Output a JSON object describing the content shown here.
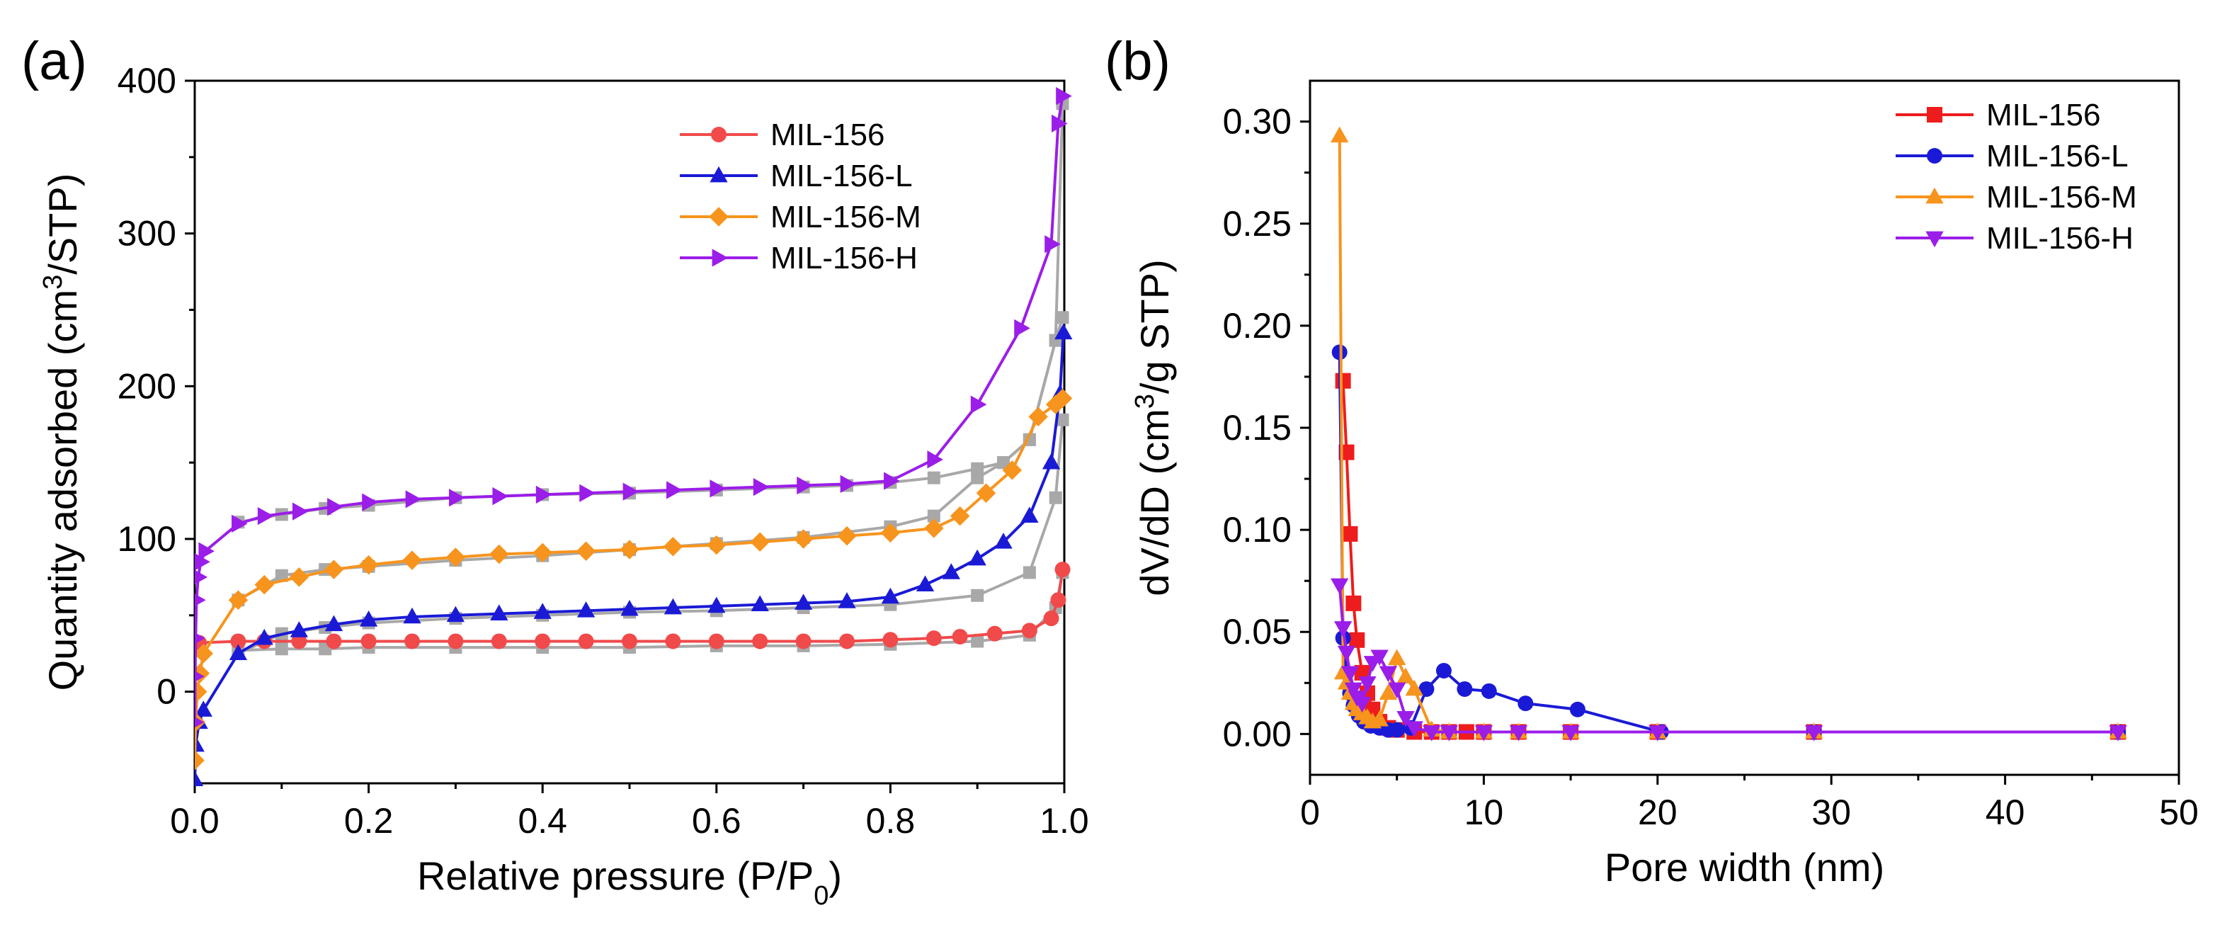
{
  "chart_data": [
    {
      "panel_label": "(a)",
      "type": "line",
      "xlabel": "Relative pressure (P/P",
      "xlabel_sub": "0",
      "xlabel_end": ")",
      "ylabel": "Quantity adsorbed (cm",
      "ylabel_sup": "3",
      "ylabel_end": "/STP)",
      "xlim": [
        0,
        1
      ],
      "ylim": [
        -60,
        400
      ],
      "xticks": [
        0,
        0.2,
        0.4,
        0.6,
        0.8,
        1.0
      ],
      "xtick_labels": [
        "0.0",
        "0.2",
        "0.4",
        "0.6",
        "0.8",
        "1.0"
      ],
      "yticks": [
        0,
        100,
        200,
        300,
        400
      ],
      "ytick_labels": [
        "0",
        "100",
        "200",
        "300",
        "400"
      ],
      "legend_position": "top-right",
      "grid": false,
      "series": [
        {
          "name": "MIL-156",
          "color": "#f04a4a",
          "marker": "circle",
          "x": [
            0.005,
            0.05,
            0.08,
            0.12,
            0.16,
            0.2,
            0.25,
            0.3,
            0.35,
            0.4,
            0.45,
            0.5,
            0.55,
            0.6,
            0.65,
            0.7,
            0.75,
            0.8,
            0.85,
            0.88,
            0.92,
            0.96,
            0.985,
            0.993,
            0.998
          ],
          "y": [
            32,
            33,
            33,
            33,
            33,
            33,
            33,
            33,
            33,
            33,
            33,
            33,
            33,
            33,
            33,
            33,
            33,
            34,
            35,
            36,
            38,
            40,
            48,
            60,
            80
          ],
          "desorption_x": [
            0.998,
            0.99,
            0.96,
            0.9,
            0.8,
            0.7,
            0.6,
            0.5,
            0.4,
            0.3,
            0.2,
            0.15,
            0.1,
            0.05
          ],
          "desorption_y": [
            78,
            55,
            37,
            33,
            31,
            30,
            30,
            29,
            29,
            29,
            29,
            28,
            28,
            27
          ]
        },
        {
          "name": "MIL-156-L",
          "color": "#1a1ad6",
          "marker": "triangle-up",
          "x": [
            0.0001,
            0.001,
            0.005,
            0.01,
            0.05,
            0.08,
            0.12,
            0.16,
            0.2,
            0.25,
            0.3,
            0.35,
            0.4,
            0.45,
            0.5,
            0.55,
            0.6,
            0.65,
            0.7,
            0.75,
            0.8,
            0.84,
            0.87,
            0.9,
            0.93,
            0.96,
            0.985,
            0.995,
            0.999
          ],
          "y": [
            -58,
            -35,
            -20,
            -12,
            25,
            35,
            40,
            44,
            47,
            49,
            50,
            51,
            52,
            53,
            54,
            55,
            56,
            57,
            58,
            59,
            62,
            70,
            78,
            87,
            98,
            115,
            150,
            195,
            235
          ],
          "desorption_x": [
            0.998,
            0.99,
            0.96,
            0.9,
            0.8,
            0.7,
            0.6,
            0.5,
            0.4,
            0.3,
            0.2,
            0.15,
            0.1,
            0.05
          ],
          "desorption_y": [
            178,
            127,
            78,
            63,
            57,
            55,
            53,
            52,
            50,
            48,
            45,
            42,
            38,
            25
          ]
        },
        {
          "name": "MIL-156-M",
          "color": "#f7941d",
          "marker": "diamond",
          "x": [
            0.0001,
            0.001,
            0.003,
            0.006,
            0.01,
            0.05,
            0.08,
            0.12,
            0.16,
            0.2,
            0.25,
            0.3,
            0.35,
            0.4,
            0.45,
            0.5,
            0.55,
            0.6,
            0.65,
            0.7,
            0.75,
            0.8,
            0.85,
            0.88,
            0.91,
            0.94,
            0.97,
            0.99,
            0.998
          ],
          "y": [
            -45,
            -20,
            0,
            12,
            25,
            60,
            70,
            75,
            80,
            83,
            86,
            88,
            90,
            91,
            92,
            93,
            95,
            96,
            98,
            100,
            102,
            104,
            107,
            115,
            130,
            145,
            180,
            188,
            192
          ],
          "desorption_x": [
            0.998,
            0.99,
            0.96,
            0.93,
            0.9,
            0.85,
            0.8,
            0.7,
            0.6,
            0.5,
            0.4,
            0.3,
            0.2,
            0.15,
            0.1,
            0.05
          ],
          "desorption_y": [
            245,
            230,
            165,
            150,
            140,
            115,
            108,
            101,
            97,
            93,
            89,
            86,
            82,
            80,
            76,
            60
          ]
        },
        {
          "name": "MIL-156-H",
          "color": "#9b1de8",
          "marker": "triangle-right",
          "x": [
            0.0001,
            0.0005,
            0.001,
            0.002,
            0.004,
            0.007,
            0.012,
            0.05,
            0.08,
            0.12,
            0.16,
            0.2,
            0.25,
            0.3,
            0.35,
            0.4,
            0.45,
            0.5,
            0.55,
            0.6,
            0.65,
            0.7,
            0.75,
            0.8,
            0.85,
            0.9,
            0.95,
            0.985,
            0.993,
            0.998
          ],
          "y": [
            -20,
            10,
            35,
            60,
            75,
            85,
            92,
            110,
            115,
            118,
            121,
            124,
            126,
            127,
            128,
            129,
            130,
            131,
            132,
            133,
            134,
            135,
            136,
            138,
            152,
            188,
            238,
            293,
            372,
            390
          ],
          "desorption_x": [
            0.998,
            0.99,
            0.96,
            0.93,
            0.9,
            0.85,
            0.8,
            0.75,
            0.7,
            0.6,
            0.5,
            0.4,
            0.3,
            0.2,
            0.15,
            0.1,
            0.05
          ],
          "desorption_y": [
            385,
            230,
            165,
            150,
            146,
            140,
            137,
            135,
            134,
            132,
            130,
            129,
            127,
            122,
            120,
            116,
            111
          ]
        }
      ],
      "desorption_color": "#a8a8a8",
      "desorption_marker": "square"
    },
    {
      "panel_label": "(b)",
      "type": "line",
      "xlabel": "Pore width (nm)",
      "ylabel": "dV/dD (cm",
      "ylabel_sup": "3",
      "ylabel_end": "/g STP)",
      "xlim": [
        0,
        50
      ],
      "ylim": [
        -0.02,
        0.32
      ],
      "xticks": [
        0,
        10,
        20,
        30,
        40,
        50
      ],
      "xtick_labels": [
        "0",
        "10",
        "20",
        "30",
        "40",
        "50"
      ],
      "yticks": [
        0,
        0.05,
        0.1,
        0.15,
        0.2,
        0.25,
        0.3
      ],
      "ytick_labels": [
        "0.00",
        "0.05",
        "0.10",
        "0.15",
        "0.20",
        "0.25",
        "0.30"
      ],
      "legend_position": "top-right",
      "grid": false,
      "series": [
        {
          "name": "MIL-156",
          "color": "#ee1c1c",
          "marker": "square",
          "x": [
            1.9,
            2.1,
            2.3,
            2.5,
            2.7,
            3.0,
            3.3,
            3.6,
            4.0,
            4.5,
            5.0,
            6.0,
            7.0,
            8.0,
            9.0,
            10.0,
            12.0,
            15.0,
            20.0,
            29.0,
            46.5
          ],
          "y": [
            0.173,
            0.138,
            0.098,
            0.064,
            0.046,
            0.03,
            0.02,
            0.012,
            0.006,
            0.003,
            0.002,
            0.001,
            0.001,
            0.001,
            0.001,
            0.001,
            0.001,
            0.001,
            0.001,
            0.001,
            0.001
          ]
        },
        {
          "name": "MIL-156-L",
          "color": "#1a1ad6",
          "marker": "circle",
          "x": [
            1.7,
            1.9,
            2.1,
            2.3,
            2.5,
            2.8,
            3.1,
            3.5,
            4.0,
            4.5,
            5.0,
            5.8,
            6.7,
            7.7,
            8.9,
            10.3,
            12.4,
            15.4,
            20.2,
            29.0,
            46.5
          ],
          "y": [
            0.187,
            0.047,
            0.03,
            0.02,
            0.014,
            0.009,
            0.006,
            0.004,
            0.003,
            0.002,
            0.002,
            0.003,
            0.022,
            0.031,
            0.022,
            0.021,
            0.015,
            0.012,
            0.001,
            0.001,
            0.001
          ]
        },
        {
          "name": "MIL-156-M",
          "color": "#f7941d",
          "marker": "triangle-up",
          "x": [
            1.7,
            1.9,
            2.1,
            2.3,
            2.5,
            2.7,
            3.0,
            3.3,
            3.6,
            4.0,
            4.5,
            5.0,
            5.5,
            6.0,
            7.0,
            8.0,
            10.0,
            12.0,
            15.0,
            20.0,
            29.0,
            46.5
          ],
          "y": [
            0.293,
            0.03,
            0.025,
            0.02,
            0.015,
            0.012,
            0.01,
            0.008,
            0.006,
            0.007,
            0.02,
            0.037,
            0.028,
            0.022,
            0.002,
            0.001,
            0.001,
            0.001,
            0.001,
            0.001,
            0.001,
            0.001
          ]
        },
        {
          "name": "MIL-156-H",
          "color": "#9b1de8",
          "marker": "triangle-down",
          "x": [
            1.7,
            1.9,
            2.1,
            2.3,
            2.5,
            2.7,
            3.0,
            3.3,
            3.6,
            4.0,
            4.5,
            5.0,
            5.5,
            6.0,
            7.0,
            8.0,
            10.0,
            12.0,
            15.0,
            20.0,
            29.0,
            46.5
          ],
          "y": [
            0.073,
            0.052,
            0.04,
            0.03,
            0.022,
            0.018,
            0.015,
            0.025,
            0.035,
            0.038,
            0.03,
            0.022,
            0.008,
            0.003,
            0.001,
            0.001,
            0.001,
            0.001,
            0.001,
            0.001,
            0.001,
            0.001
          ]
        }
      ]
    }
  ]
}
